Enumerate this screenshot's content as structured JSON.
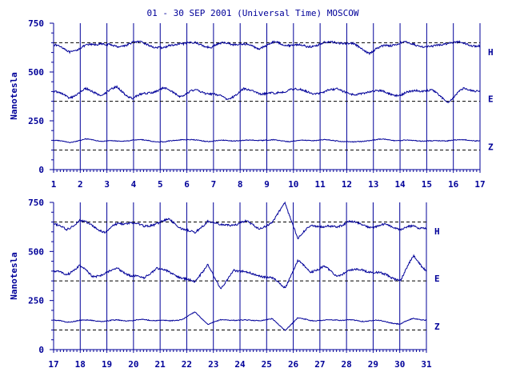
{
  "title": "01 - 30 SEP 2001 (Universal Time) MOSCOW",
  "ylabel": "Nanotesla",
  "colors": {
    "trace": "#000099",
    "axis": "#000099",
    "background": "#ffffff"
  },
  "chart_data": [
    {
      "type": "line",
      "panel": "top",
      "x_ticks": [
        "1",
        "2",
        "3",
        "4",
        "5",
        "6",
        "7",
        "8",
        "9",
        "10",
        "11",
        "12",
        "13",
        "14",
        "15",
        "16",
        "17"
      ],
      "xlim": [
        1,
        17
      ],
      "y_ticks": [
        "0",
        "250",
        "500",
        "750"
      ],
      "ylim": [
        0,
        750
      ],
      "reference_lines": [
        650,
        350,
        100
      ],
      "series": [
        {
          "name": "H",
          "baseline": 635,
          "values": [
            640,
            605,
            630,
            650,
            625,
            655,
            640,
            620,
            650,
            645,
            630,
            650,
            640,
            625,
            650,
            640,
            630,
            645,
            655,
            640,
            600,
            635,
            650,
            640,
            625,
            655,
            645,
            635
          ]
        },
        {
          "name": "E",
          "baseline": 395,
          "values": [
            400,
            370,
            410,
            385,
            420,
            365,
            395,
            415,
            380,
            405,
            390,
            360,
            410,
            395,
            385,
            415,
            400,
            390,
            420,
            375,
            405,
            395,
            380,
            410,
            400,
            350,
            415,
            405
          ]
        },
        {
          "name": "Z",
          "baseline": 150,
          "values": [
            150,
            140,
            155,
            148,
            145,
            152,
            150,
            140,
            155,
            150,
            145,
            150,
            148,
            152,
            150,
            145,
            150,
            152,
            148,
            140,
            150,
            155,
            148,
            150,
            145,
            150,
            152,
            148
          ]
        }
      ]
    },
    {
      "type": "line",
      "panel": "bottom",
      "x_ticks": [
        "17",
        "18",
        "19",
        "20",
        "21",
        "22",
        "23",
        "24",
        "25",
        "26",
        "27",
        "28",
        "29",
        "30",
        "31"
      ],
      "xlim": [
        17,
        31
      ],
      "y_ticks": [
        "0",
        "250",
        "500",
        "750"
      ],
      "ylim": [
        0,
        750
      ],
      "reference_lines": [
        650,
        350,
        100
      ],
      "series": [
        {
          "name": "H",
          "baseline": 635,
          "values": [
            640,
            610,
            660,
            630,
            600,
            640,
            650,
            625,
            645,
            660,
            620,
            590,
            660,
            630,
            640,
            650,
            620,
            640,
            755,
            560,
            640,
            620,
            630,
            650,
            640,
            620,
            640,
            610,
            630,
            620
          ]
        },
        {
          "name": "E",
          "baseline": 395,
          "values": [
            400,
            380,
            430,
            370,
            390,
            410,
            380,
            360,
            420,
            390,
            370,
            340,
            440,
            300,
            410,
            390,
            380,
            360,
            320,
            450,
            400,
            420,
            380,
            400,
            410,
            390,
            380,
            350,
            480,
            400
          ]
        },
        {
          "name": "Z",
          "baseline": 150,
          "values": [
            150,
            140,
            150,
            148,
            145,
            150,
            148,
            152,
            150,
            145,
            155,
            190,
            130,
            150,
            152,
            148,
            150,
            155,
            100,
            160,
            150,
            148,
            152,
            150,
            145,
            150,
            140,
            130,
            160,
            150
          ]
        }
      ]
    }
  ]
}
